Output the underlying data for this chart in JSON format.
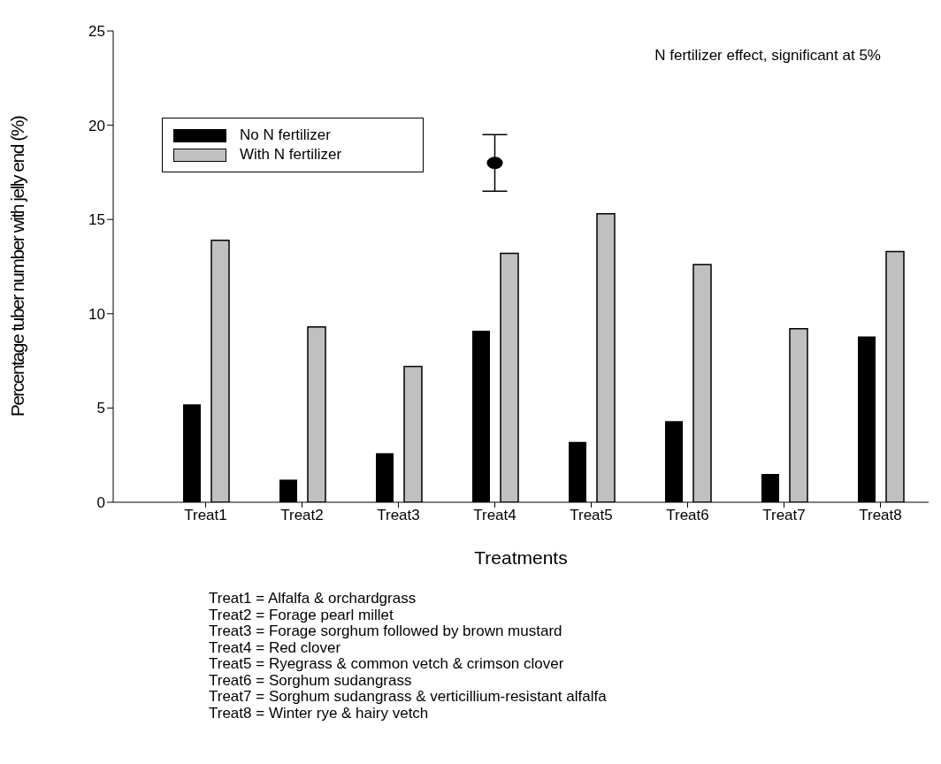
{
  "chart_data": {
    "type": "bar",
    "xlabel": "Treatments",
    "ylabel": "Percentage tuber number with jelly end (%)",
    "categories": [
      "Treat1",
      "Treat2",
      "Treat3",
      "Treat4",
      "Treat5",
      "Treat6",
      "Treat7",
      "Treat8"
    ],
    "series": [
      {
        "name": "No N fertilizer",
        "color": "#000000",
        "values": [
          5.2,
          1.2,
          2.6,
          9.1,
          3.2,
          4.3,
          1.5,
          8.8
        ]
      },
      {
        "name": "With N fertilizer",
        "color": "#c0c0c0",
        "values": [
          13.9,
          9.3,
          7.2,
          13.2,
          15.3,
          12.6,
          9.2,
          13.3
        ]
      },
      {
        "type": "scatter",
        "color": "#000000",
        "x": [
          "Treat4"
        ],
        "values": [
          18
        ],
        "errors": [
          [
            16.5,
            19.5
          ]
        ]
      }
    ],
    "ylim": [
      0,
      25
    ],
    "yticks": [
      0,
      5,
      10,
      15,
      20,
      25
    ],
    "grid": false,
    "legend": "top left",
    "marker": "circle",
    "annotations": [
      "N fertilizer effect, significant at 5%",
      "Treat1 = Alfalfa & orchardgrass",
      "Treat2 = Forage pearl millet",
      "Treat3 = Forage sorghum followed by brown mustard",
      "Treat4 = Red clover",
      "Treat5 = Ryegrass & common vetch & crimson clover",
      "Treat6 = Sorghum sudangrass",
      "Treat7 = Sorghum sudangrass & verticillium-resistant alfalfa",
      "Treat8 = Winter rye & hairy vetch"
    ]
  }
}
